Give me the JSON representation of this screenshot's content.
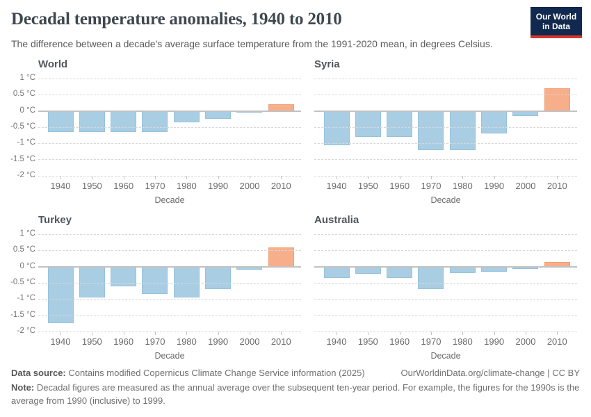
{
  "header": {
    "title": "Decadal temperature anomalies, 1940 to 2010",
    "subtitle": "The difference between a decade's average surface temperature from the 1991-2020 mean, in degrees Celsius.",
    "logo": {
      "line1": "Our World",
      "line2": "in Data",
      "bg_color": "#12294f",
      "stripe_color": "#dc352b"
    }
  },
  "chart_data": {
    "type": "bar",
    "categories": [
      "1940",
      "1950",
      "1960",
      "1970",
      "1980",
      "1990",
      "2000",
      "2010"
    ],
    "xlabel": "Decade",
    "ylabel": "",
    "unit": "°C",
    "ylim": [
      -2,
      1
    ],
    "yticks": [
      1,
      0.5,
      0,
      -0.5,
      -1,
      -1.5,
      -2
    ],
    "ytick_labels": [
      "1 °C",
      "0.5 °C",
      "0 °C",
      "-0.5 °C",
      "-1 °C",
      "-1.5 °C",
      "-2 °C"
    ],
    "grid": "horizontal dashed, zero line solid",
    "legend": "none",
    "colors": {
      "negative_bar": "#a9cee4",
      "positive_bar": "#f7af8b"
    },
    "facets": [
      {
        "name": "World",
        "values": [
          -0.66,
          -0.66,
          -0.64,
          -0.64,
          -0.35,
          -0.25,
          -0.05,
          0.2
        ]
      },
      {
        "name": "Syria",
        "values": [
          -1.05,
          -0.8,
          -0.8,
          -1.2,
          -1.2,
          -0.7,
          -0.15,
          0.7
        ]
      },
      {
        "name": "Turkey",
        "values": [
          -1.75,
          -0.95,
          -0.6,
          -0.85,
          -0.95,
          -0.7,
          -0.1,
          0.6
        ]
      },
      {
        "name": "Australia",
        "values": [
          -0.35,
          -0.22,
          -0.35,
          -0.7,
          -0.2,
          -0.15,
          -0.08,
          0.15
        ]
      }
    ]
  },
  "footer": {
    "data_source_label": "Data source:",
    "data_source_text": "Contains modified Copernicus Climate Change Service information (2025)",
    "link_text": "OurWorldinData.org/climate-change | CC BY",
    "note_label": "Note:",
    "note_text": "Decadal figures are measured as the annual average over the subsequent ten-year period. For example, the figures for the 1990s is the average from 1990 (inclusive) to 1999."
  }
}
